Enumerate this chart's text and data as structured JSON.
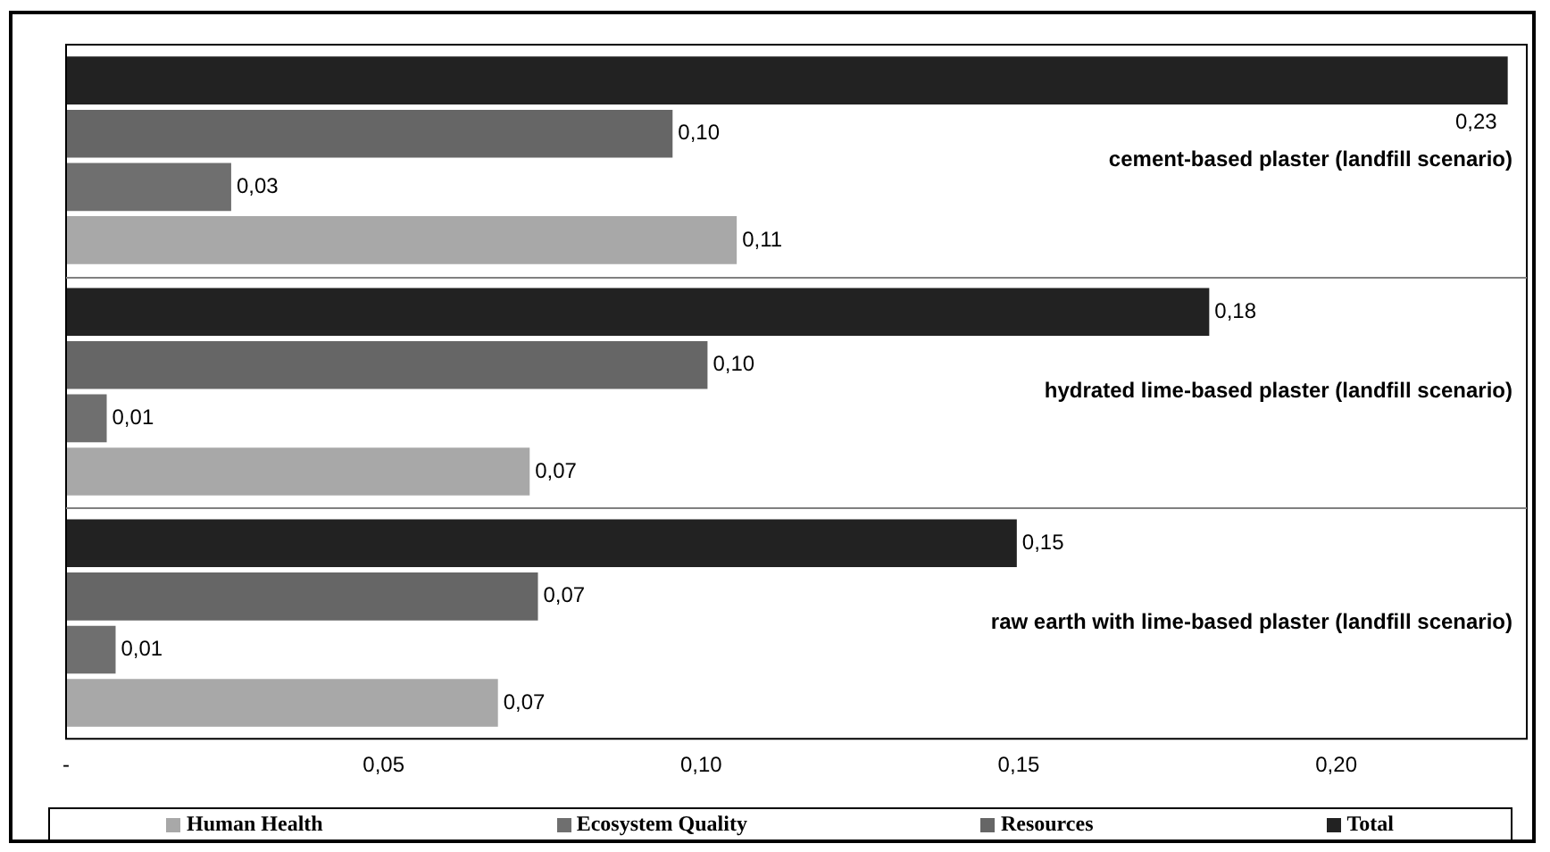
{
  "chart_data": {
    "type": "bar",
    "orientation": "horizontal",
    "categories": [
      "cement-based plaster (landfill scenario)",
      "hydrated lime-based plaster (landfill scenario)",
      "raw earth with lime-based plaster (landfill scenario)"
    ],
    "series": [
      {
        "name": "Total",
        "color": "#222222",
        "values": [
          0.227,
          0.18,
          0.1497
        ],
        "value_labels": [
          "0,23",
          "0,18",
          "0,15"
        ]
      },
      {
        "name": "Resources",
        "color": "#666666",
        "values": [
          0.0955,
          0.101,
          0.0743
        ],
        "value_labels": [
          "0,10",
          "0,10",
          "0,07"
        ]
      },
      {
        "name": "Ecosystem Quality",
        "color": "#6f6f6f",
        "values": [
          0.026,
          0.0064,
          0.0078
        ],
        "value_labels": [
          "0,03",
          "0,01",
          "0,01"
        ]
      },
      {
        "name": "Human Health",
        "color": "#a8a8a8",
        "values": [
          0.1056,
          0.073,
          0.068
        ],
        "value_labels": [
          "0,11",
          "0,07",
          "0,07"
        ]
      }
    ],
    "xlim": [
      0,
      0.23
    ],
    "xticks": [
      {
        "value": 0,
        "label": "-"
      },
      {
        "value": 0.05,
        "label": "0,05"
      },
      {
        "value": 0.1,
        "label": "0,10"
      },
      {
        "value": 0.15,
        "label": "0,15"
      },
      {
        "value": 0.2,
        "label": "0,20"
      }
    ],
    "legend": "bottom"
  }
}
